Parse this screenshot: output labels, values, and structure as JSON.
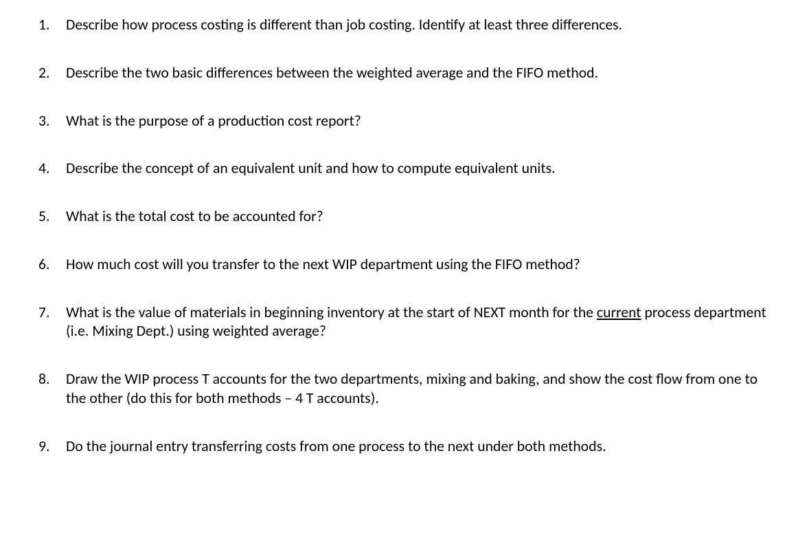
{
  "document": {
    "background_color": "#ffffff",
    "text_color": "#000000",
    "font_family": "Calibri",
    "font_size_pt": 16,
    "questions": [
      {
        "number": "1.",
        "parts": [
          {
            "text": "Describe how process costing is different than job costing.  Identify at least three differences.",
            "underline": false
          }
        ]
      },
      {
        "number": "2.",
        "parts": [
          {
            "text": "Describe the two basic differences between the weighted average and the FIFO method.",
            "underline": false
          }
        ]
      },
      {
        "number": "3.",
        "parts": [
          {
            "text": "What is the purpose of a production cost report?",
            "underline": false
          }
        ]
      },
      {
        "number": "4.",
        "parts": [
          {
            "text": "Describe the concept of an equivalent unit and how to compute equivalent units.",
            "underline": false
          }
        ]
      },
      {
        "number": "5.",
        "parts": [
          {
            "text": "What is the total cost to be accounted for?",
            "underline": false
          }
        ]
      },
      {
        "number": "6.",
        "parts": [
          {
            "text": "How much cost will you transfer to the next WIP department using the FIFO method?",
            "underline": false
          }
        ]
      },
      {
        "number": "7.",
        "parts": [
          {
            "text": "What is the value of materials in beginning inventory at the start of NEXT month for the ",
            "underline": false
          },
          {
            "text": "current",
            "underline": true
          },
          {
            "text": " process department (i.e. Mixing Dept.) using weighted average?",
            "underline": false
          }
        ]
      },
      {
        "number": "8.",
        "parts": [
          {
            "text": "Draw the WIP process T accounts for the two departments, mixing and baking, and show the cost flow from one to the other (do this for both methods – 4 T accounts).",
            "underline": false
          }
        ]
      },
      {
        "number": "9.",
        "parts": [
          {
            "text": "Do the journal entry transferring costs from one process to the next under both methods.",
            "underline": false
          }
        ]
      }
    ]
  }
}
